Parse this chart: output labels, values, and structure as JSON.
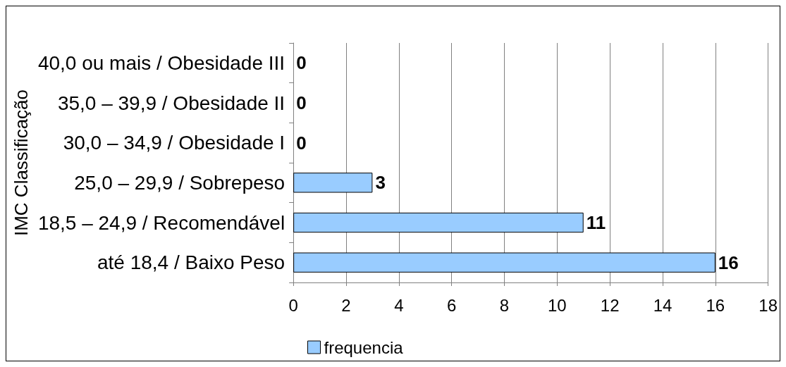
{
  "chart_data": {
    "type": "bar",
    "orientation": "horizontal",
    "ylabel": "IMC Classificação",
    "categories": [
      "40,0 ou mais / Obesidade III",
      "35,0 – 39,9 / Obesidade II",
      "30,0 – 34,9 / Obesidade I",
      "25,0 – 29,9 / Sobrepeso",
      "18,5 – 24,9 / Recomendável",
      "até 18,4 / Baixo Peso"
    ],
    "series": [
      {
        "name": "frequencia",
        "color": "#99ccff",
        "values": [
          0,
          0,
          0,
          3,
          11,
          16
        ]
      }
    ],
    "xlim": [
      0,
      18
    ],
    "xticks": [
      0,
      2,
      4,
      6,
      8,
      10,
      12,
      14,
      16,
      18
    ],
    "grid": "x",
    "legend": "bottom",
    "data_labels": true
  }
}
